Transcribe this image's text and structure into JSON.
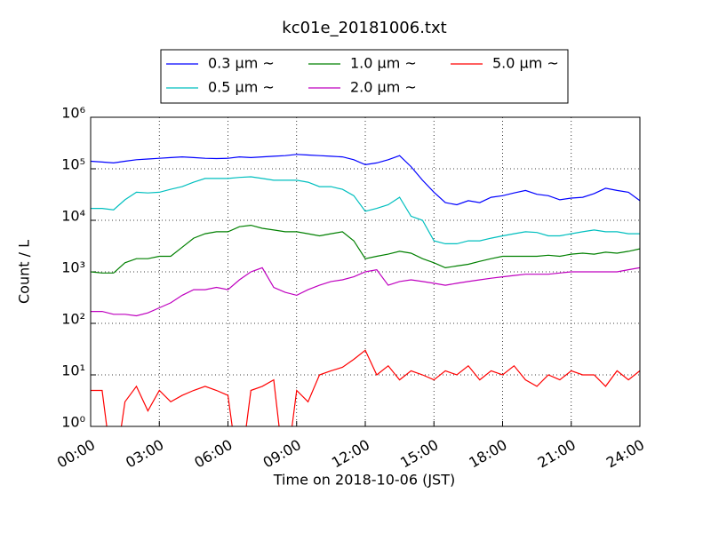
{
  "chart_data": {
    "type": "line",
    "title": "kc01e_20181006.txt",
    "x_label": "Time on 2018-10-06 (JST)",
    "y_label": "Count / L",
    "x": [
      0,
      0.5,
      1,
      1.5,
      2,
      2.5,
      3,
      3.5,
      4,
      4.5,
      5,
      5.5,
      6,
      6.5,
      7,
      7.5,
      8,
      8.5,
      9,
      9.5,
      10,
      10.5,
      11,
      11.5,
      12,
      12.5,
      13,
      13.5,
      14,
      14.5,
      15,
      15.5,
      16,
      16.5,
      17,
      17.5,
      18,
      18.5,
      19,
      19.5,
      20,
      20.5,
      21,
      21.5,
      22,
      22.5,
      23,
      23.5,
      24
    ],
    "xlim": [
      0,
      24
    ],
    "xticks": [
      {
        "value": 0,
        "label": "00:00"
      },
      {
        "value": 3,
        "label": "03:00"
      },
      {
        "value": 6,
        "label": "06:00"
      },
      {
        "value": 9,
        "label": "09:00"
      },
      {
        "value": 12,
        "label": "12:00"
      },
      {
        "value": 15,
        "label": "15:00"
      },
      {
        "value": 18,
        "label": "18:00"
      },
      {
        "value": 21,
        "label": "21:00"
      },
      {
        "value": 24,
        "label": "24:00"
      }
    ],
    "ylim": [
      1,
      1000000
    ],
    "log_y": true,
    "yticks": [
      {
        "value": 1,
        "label": "10⁰"
      },
      {
        "value": 10,
        "label": "10¹"
      },
      {
        "value": 100,
        "label": "10²"
      },
      {
        "value": 1000,
        "label": "10³"
      },
      {
        "value": 10000,
        "label": "10⁴"
      },
      {
        "value": 100000,
        "label": "10⁵"
      },
      {
        "value": 1000000,
        "label": "10⁶"
      }
    ],
    "grid": true,
    "legend": "upper center",
    "legend_columns": 3,
    "series": [
      {
        "name": "0.3 μm ~",
        "color": "#0000ff",
        "values": [
          140000,
          135000,
          130000,
          140000,
          150000,
          155000,
          160000,
          165000,
          170000,
          165000,
          160000,
          158000,
          160000,
          170000,
          165000,
          170000,
          175000,
          180000,
          190000,
          185000,
          180000,
          175000,
          170000,
          150000,
          120000,
          130000,
          150000,
          180000,
          110000,
          60000,
          35000,
          22000,
          20000,
          24000,
          22000,
          28000,
          30000,
          34000,
          38000,
          32000,
          30000,
          25000,
          27000,
          28000,
          33000,
          42000,
          38000,
          35000,
          24000
        ]
      },
      {
        "name": "0.5 μm ~",
        "color": "#00bfbf",
        "values": [
          17000,
          17000,
          16000,
          25000,
          35000,
          34000,
          35000,
          40000,
          45000,
          55000,
          65000,
          65000,
          65000,
          68000,
          70000,
          65000,
          60000,
          60000,
          60000,
          55000,
          45000,
          45000,
          40000,
          30000,
          15000,
          17000,
          20000,
          28000,
          12000,
          10000,
          4000,
          3500,
          3500,
          4000,
          4000,
          4500,
          5000,
          5500,
          6000,
          5800,
          5000,
          5000,
          5500,
          6000,
          6500,
          6000,
          6000,
          5500,
          5500
        ]
      },
      {
        "name": "1.0 μm ~",
        "color": "#008000",
        "values": [
          1000,
          950,
          950,
          1500,
          1800,
          1800,
          2000,
          2000,
          3000,
          4500,
          5500,
          6000,
          6000,
          7500,
          8000,
          7000,
          6500,
          6000,
          6000,
          5500,
          5000,
          5500,
          6000,
          4000,
          1800,
          2000,
          2200,
          2500,
          2300,
          1800,
          1500,
          1200,
          1300,
          1400,
          1600,
          1800,
          2000,
          2000,
          2000,
          2000,
          2100,
          2000,
          2200,
          2300,
          2200,
          2400,
          2300,
          2500,
          2800
        ]
      },
      {
        "name": "2.0 μm ~",
        "color": "#bf00bf",
        "values": [
          170,
          170,
          150,
          150,
          140,
          160,
          200,
          250,
          350,
          450,
          450,
          500,
          450,
          700,
          1000,
          1200,
          500,
          400,
          350,
          450,
          550,
          650,
          700,
          800,
          1000,
          1100,
          550,
          650,
          700,
          650,
          600,
          550,
          600,
          650,
          700,
          750,
          800,
          850,
          900,
          900,
          900,
          950,
          1000,
          1000,
          1000,
          1000,
          1000,
          1100,
          1200
        ]
      },
      {
        "name": "5.0 μm ~",
        "color": "#ff0000",
        "values": [
          5,
          5,
          0,
          3,
          6,
          2,
          5,
          3,
          4,
          5,
          6,
          5,
          4,
          0,
          5,
          6,
          8,
          0,
          5,
          3,
          10,
          12,
          14,
          20,
          30,
          10,
          15,
          8,
          12,
          10,
          8,
          12,
          10,
          15,
          8,
          12,
          10,
          15,
          8,
          6,
          10,
          8,
          12,
          10,
          10,
          6,
          12,
          8,
          12
        ]
      }
    ]
  }
}
